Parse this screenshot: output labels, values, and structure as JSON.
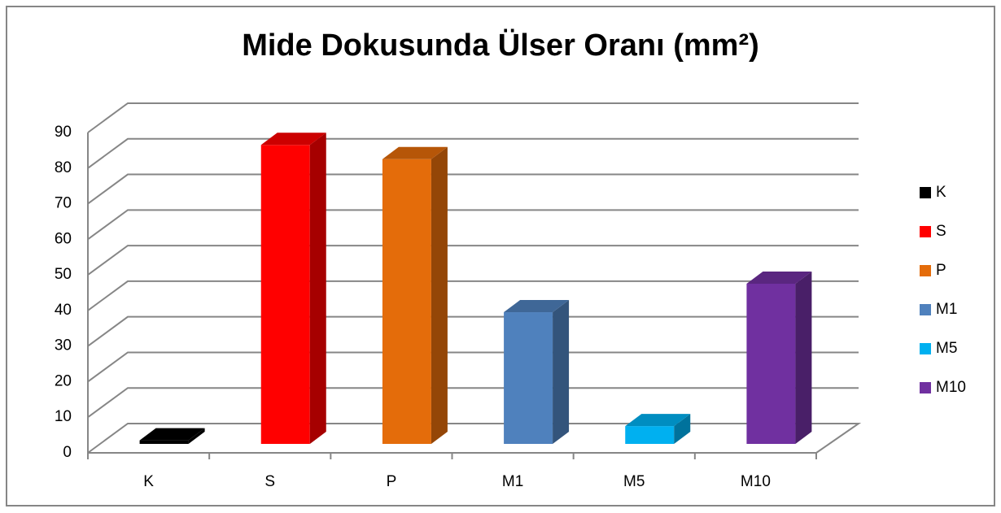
{
  "chart_data": {
    "type": "bar3d",
    "title": "Mide Dokusunda Ülser Oranı (mm²)",
    "categories": [
      "K",
      "S",
      "P",
      "M1",
      "M5",
      "M10"
    ],
    "values": [
      1,
      84,
      80,
      37,
      5,
      45
    ],
    "colors": [
      "#000000",
      "#ff0000",
      "#e46c0a",
      "#4f81bd",
      "#00b0f0",
      "#7030a0"
    ],
    "ylim": [
      0,
      90
    ],
    "yticks": [
      0,
      10,
      20,
      30,
      40,
      50,
      60,
      70,
      80,
      90
    ],
    "grid": true,
    "legend": "right"
  }
}
